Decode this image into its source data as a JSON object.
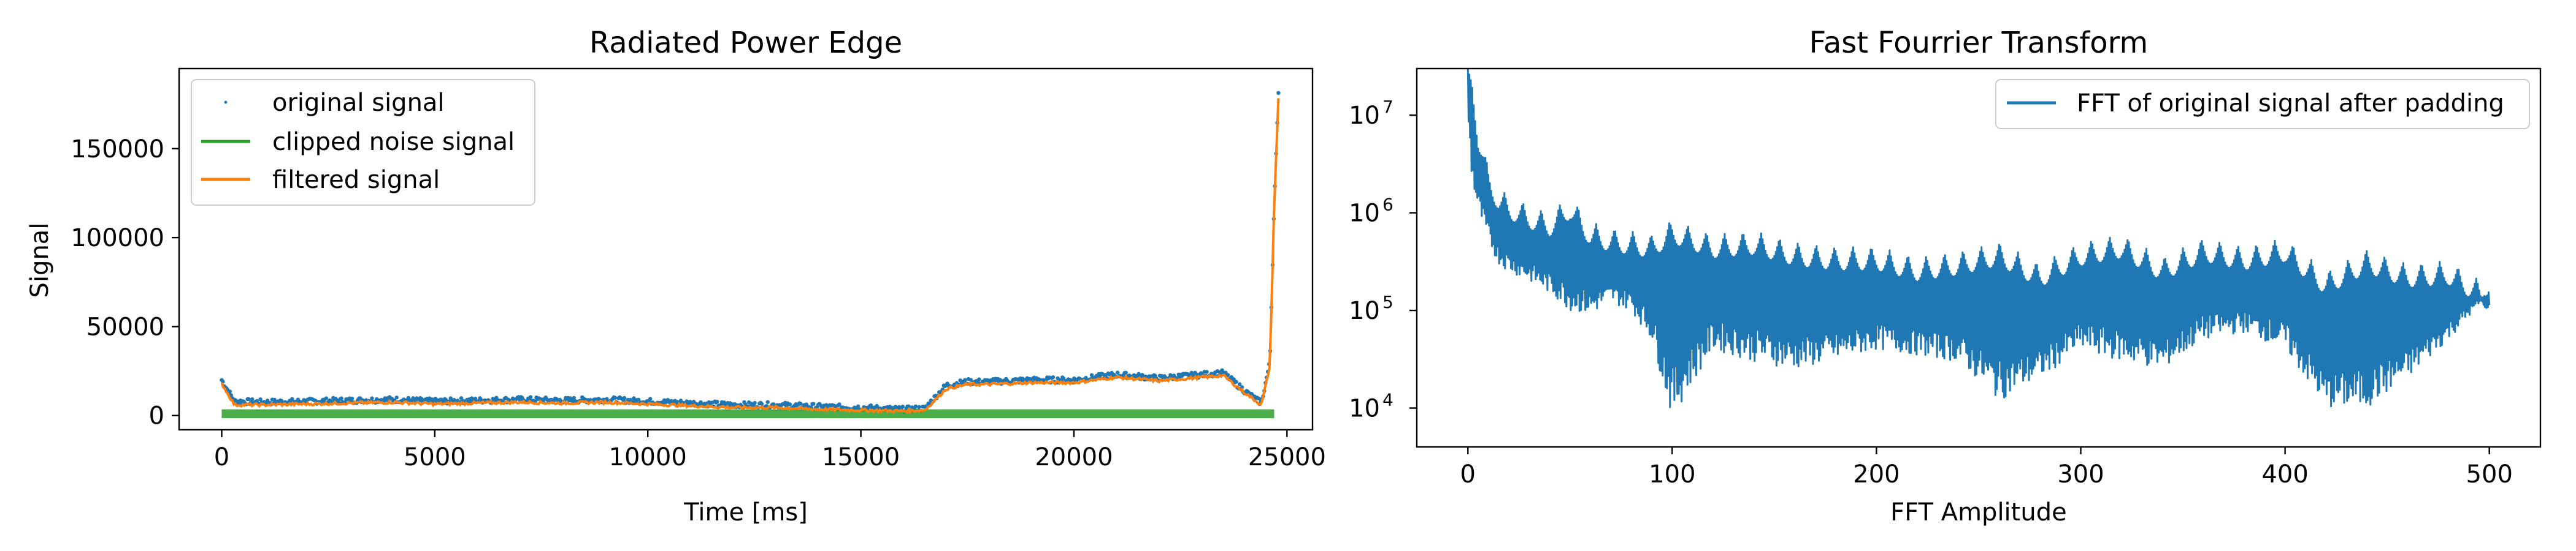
{
  "chart_data": [
    {
      "type": "line",
      "title": "Radiated Power Edge",
      "xlabel": "Time [ms]",
      "ylabel": "Signal",
      "xlim": [
        -1000,
        25600
      ],
      "ylim": [
        -8000,
        195000
      ],
      "xticks": [
        0,
        5000,
        10000,
        15000,
        20000,
        25000
      ],
      "xtick_labels": [
        "0",
        "5000",
        "10000",
        "15000",
        "20000",
        "25000"
      ],
      "yticks": [
        0,
        50000,
        100000,
        150000
      ],
      "ytick_labels": [
        "0",
        "50000",
        "100000",
        "150000"
      ],
      "grid": false,
      "legend_position": "top-left",
      "series": [
        {
          "name": "original signal",
          "style": "points",
          "color": "#1f77b4",
          "x": [
            0,
            300,
            1000,
            2000,
            3000,
            4000,
            5000,
            6000,
            7000,
            8000,
            9000,
            10000,
            11000,
            12000,
            13000,
            14000,
            15000,
            16000,
            16500,
            17000,
            17500,
            18000,
            19000,
            20000,
            21000,
            22000,
            23000,
            23500,
            24000,
            24400,
            24600,
            24700,
            24800
          ],
          "y": [
            20000,
            8000,
            7500,
            8000,
            8500,
            9000,
            8000,
            8500,
            9000,
            8500,
            9000,
            8000,
            7000,
            6000,
            6000,
            5000,
            4500,
            3500,
            4000,
            17000,
            19000,
            19000,
            20000,
            20000,
            23000,
            21000,
            23000,
            24000,
            14000,
            7000,
            30000,
            120000,
            180000
          ]
        },
        {
          "name": "clipped noise signal",
          "style": "band",
          "color": "#2ca02c",
          "x": [
            0,
            5000,
            10000,
            15000,
            20000,
            24700
          ],
          "y": [
            1000,
            1000,
            1000,
            1000,
            1000,
            1000
          ],
          "spread": 2500
        },
        {
          "name": "filtered signal",
          "style": "line",
          "color": "#ff7f0e",
          "x": [
            0,
            300,
            1000,
            2000,
            3000,
            4000,
            5000,
            6000,
            7000,
            8000,
            9000,
            10000,
            11000,
            12000,
            13000,
            14000,
            15000,
            16000,
            16500,
            17000,
            17500,
            18000,
            19000,
            20000,
            21000,
            22000,
            23000,
            23500,
            24000,
            24400,
            24600,
            24700,
            24800
          ],
          "y": [
            18000,
            6000,
            6000,
            6500,
            7000,
            7500,
            6500,
            7000,
            7500,
            7000,
            7500,
            6500,
            5500,
            4500,
            4500,
            3500,
            3000,
            2500,
            3000,
            15000,
            17500,
            17500,
            18500,
            18500,
            21500,
            19500,
            21500,
            22500,
            13000,
            6000,
            28000,
            118000,
            178000
          ]
        }
      ]
    },
    {
      "type": "line",
      "title": "Fast Fourrier Transform",
      "xlabel": "FFT Amplitude",
      "ylabel": "",
      "xlim": [
        -25,
        525
      ],
      "ylim": [
        4000,
        30000000
      ],
      "yscale": "log",
      "xticks": [
        0,
        100,
        200,
        300,
        400,
        500
      ],
      "xtick_labels": [
        "0",
        "100",
        "200",
        "300",
        "400",
        "500"
      ],
      "yticks": [
        10000,
        100000,
        1000000,
        10000000
      ],
      "ytick_labels": [
        "10",
        "10",
        "10",
        "10"
      ],
      "ytick_exponents": [
        "4",
        "5",
        "6",
        "7"
      ],
      "grid": false,
      "legend_position": "top-right",
      "series": [
        {
          "name": "FFT of original signal after padding",
          "color": "#1f77b4",
          "x": [
            0,
            2,
            5,
            10,
            15,
            20,
            30,
            40,
            50,
            60,
            70,
            80,
            90,
            100,
            120,
            140,
            160,
            180,
            200,
            220,
            240,
            260,
            280,
            300,
            320,
            340,
            360,
            380,
            400,
            420,
            440,
            460,
            480,
            500
          ],
          "upper": [
            30000000,
            30000000,
            8000000,
            3000000,
            1800000,
            1500000,
            1200000,
            1000000,
            1500000,
            800000,
            700000,
            650000,
            600000,
            850000,
            600000,
            650000,
            500000,
            450000,
            450000,
            350000,
            400000,
            500000,
            300000,
            500000,
            600000,
            350000,
            550000,
            450000,
            550000,
            250000,
            420000,
            300000,
            320000,
            180000
          ],
          "lower": [
            10000000,
            2000000,
            1000000,
            500000,
            300000,
            250000,
            200000,
            150000,
            100000,
            90000,
            120000,
            100000,
            50000,
            8000,
            40000,
            30000,
            25000,
            30000,
            40000,
            35000,
            30000,
            12000,
            20000,
            40000,
            30000,
            25000,
            50000,
            60000,
            40000,
            10000,
            10000,
            20000,
            50000,
            150000
          ]
        }
      ]
    }
  ]
}
